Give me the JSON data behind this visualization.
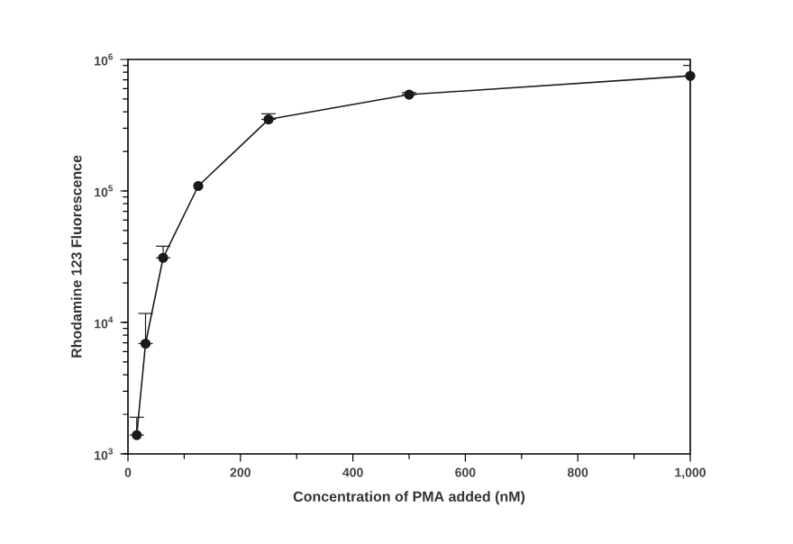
{
  "chart_data": {
    "type": "line",
    "xlabel": "Concentration of PMA added (nM)",
    "ylabel": "Rhodamine 123 Fluorescence",
    "log": "y",
    "marker": "circle",
    "line_style": "solid",
    "xlim": [
      0,
      1000
    ],
    "ylim": [
      1000,
      1000000
    ],
    "xticks": [
      0,
      200,
      400,
      600,
      800,
      {
        "value": 1000,
        "label": "1,000"
      }
    ],
    "yticks": [
      {
        "value": 1000,
        "label": "10$^{3}$"
      },
      {
        "value": 10000,
        "label": "10$^{4}$"
      },
      {
        "value": 100000,
        "label": "10$^{5}$"
      },
      {
        "value": 1000000,
        "label": "10$^{6}$"
      }
    ],
    "x": [
      15.6,
      31.25,
      62.5,
      125,
      250,
      500,
      1000
    ],
    "series": [
      {
        "color": "#1a1a1a",
        "values": [
          1390,
          6900,
          31000,
          109000,
          350000,
          540000,
          750000
        ],
        "errors": [
          [
            1390,
            1900
          ],
          [
            6900,
            11700
          ],
          [
            31000,
            38000
          ],
          null,
          [
            350000,
            386000
          ],
          [
            540000,
            560000
          ],
          [
            750000,
            900000
          ]
        ]
      }
    ]
  }
}
